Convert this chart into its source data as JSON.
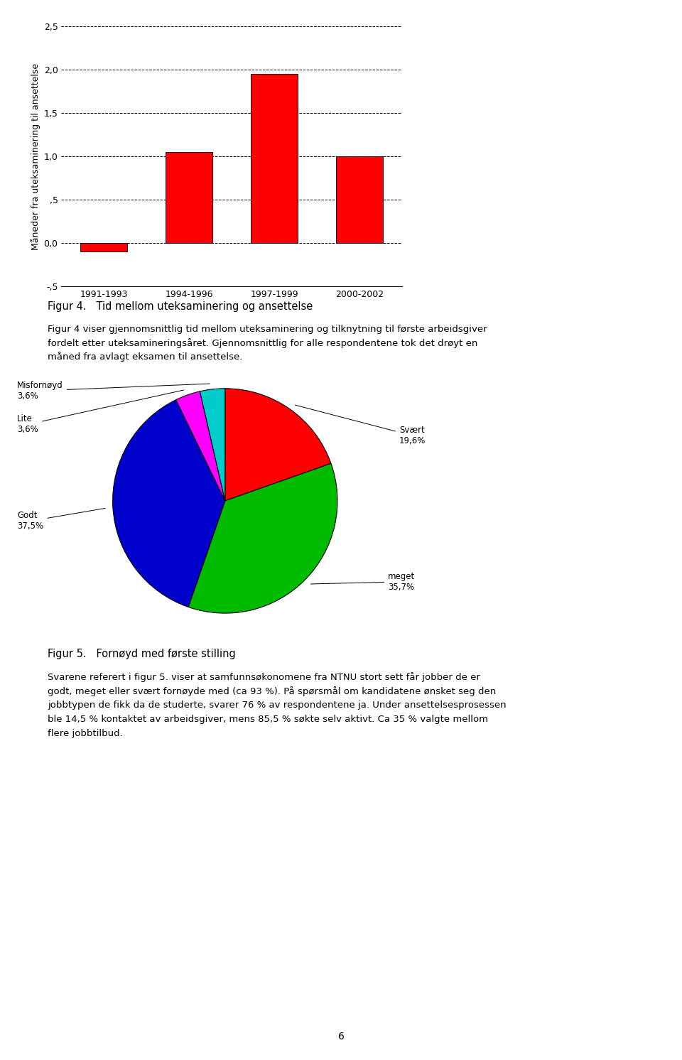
{
  "bar_categories": [
    "1991-1993",
    "1994-1996",
    "1997-1999",
    "2000-2002"
  ],
  "bar_values": [
    -0.1,
    1.05,
    1.95,
    1.0
  ],
  "bar_color": "#ff0000",
  "bar_ylabel": "Måneder fra uteksaminering til ansettelse",
  "bar_ylim": [
    -0.5,
    2.5
  ],
  "bar_yticks": [
    -0.5,
    0.0,
    0.5,
    1.0,
    1.5,
    2.0,
    2.5
  ],
  "bar_ytick_labels": [
    "-,5",
    "0,0",
    ",5",
    "1,0",
    "1,5",
    "2,0",
    "2,5"
  ],
  "fig4_caption": "Figur 4.   Tid mellom uteksaminering og ansettelse",
  "fig4_text1": "Figur 4 viser gjennomsnittlig tid mellom uteksaminering og tilknytning til første arbeidsgiver",
  "fig4_text2": "fordelt etter uteksamineringsåret. Gjennomsnittlig for alle respondentene tok det drøyt en",
  "fig4_text3": "måned fra avlagt eksamen til ansettelse.",
  "pie_values": [
    19.6,
    35.7,
    37.5,
    3.6,
    3.6
  ],
  "pie_colors": [
    "#ff0000",
    "#00bb00",
    "#0000cc",
    "#ff00ff",
    "#00cccc"
  ],
  "pie_startangle": 90,
  "svart_label": "Svært",
  "svart_pct": "19,6%",
  "meget_label": "meget",
  "meget_pct": "35,7%",
  "godt_label": "Godt",
  "godt_pct": "37,5%",
  "lite_label": "Lite",
  "lite_pct": "3,6%",
  "misfornoyd_label": "Misfornøyd",
  "misfornoyd_pct": "3,6%",
  "fig5_caption": "Figur 5.   Fornøyd med første stilling",
  "fig5_text1": "Svarene referert i figur 5. viser at samfunnsøkonomene fra NTNU stort sett får jobber de er",
  "fig5_text2": "godt, meget eller svært fornøyde med (ca 93 %). På spørsmål om kandidatene ønsket seg den",
  "fig5_text3": "jobbtypen de fikk da de studerte, svarer 76 % av respondentene ja. Under ansettelsesprosessen",
  "fig5_text4": "ble 14,5 % kontaktet av arbeidsgiver, mens 85,5 % søkte selv aktivt. Ca 35 % valgte mellom",
  "fig5_text5": "flere jobbtilbud.",
  "page_number": "6",
  "background_color": "#ffffff"
}
